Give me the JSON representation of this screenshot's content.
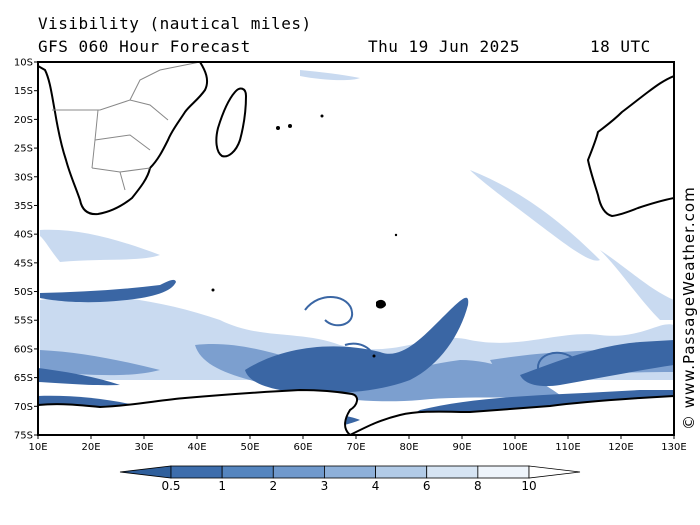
{
  "header": {
    "title": "Visibility (nautical miles)",
    "subtitle": "GFS 060 Hour Forecast",
    "date": "Thu 19 Jun 2025",
    "utc": "18 UTC"
  },
  "credit": "© www.PassageWeather.com",
  "axes": {
    "lat_labels": [
      "10S",
      "15S",
      "20S",
      "25S",
      "30S",
      "35S",
      "40S",
      "45S",
      "50S",
      "55S",
      "60S",
      "65S",
      "70S",
      "75S"
    ],
    "lon_labels": [
      "10E",
      "20E",
      "30E",
      "40E",
      "50E",
      "60E",
      "70E",
      "80E",
      "90E",
      "100E",
      "110E",
      "120E",
      "130E"
    ]
  },
  "legend": {
    "labels": [
      "0.5",
      "1",
      "2",
      "3",
      "4",
      "6",
      "8",
      "10"
    ],
    "colors": [
      "#2f5f9c",
      "#3d6dac",
      "#5585bf",
      "#7099cc",
      "#8eb0d9",
      "#b2cbe7",
      "#d6e4f3",
      "#eef4fb",
      "#ffffff"
    ]
  },
  "colors": {
    "fog_dense": "#3a66a4",
    "fog_medium": "#7c9fcf",
    "fog_light": "#c9daf0",
    "coast": "#000000",
    "borders": "#888888"
  }
}
